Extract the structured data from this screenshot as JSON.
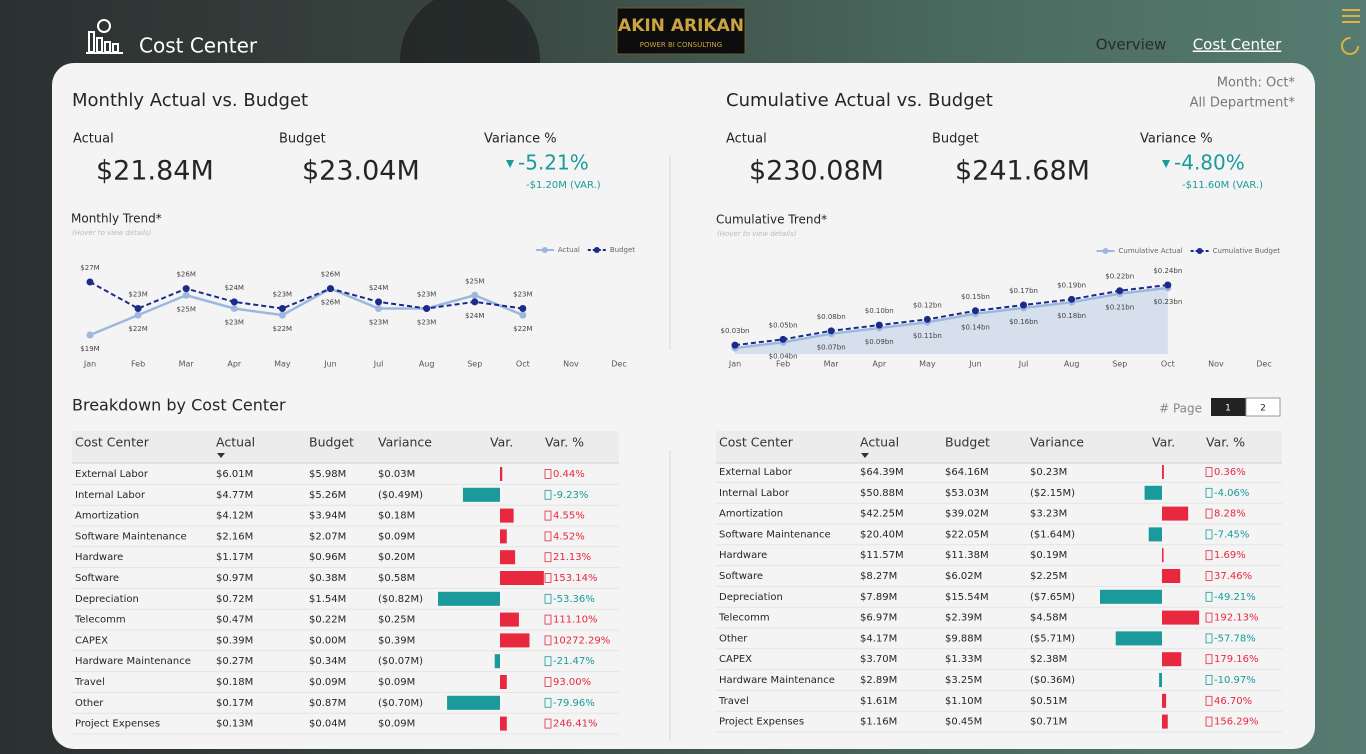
{
  "header": {
    "title": "Cost Center",
    "logo": "AKIN ARIKAN",
    "logo_sub": "POWER BI CONSULTING",
    "nav": [
      "Overview",
      "Cost Center"
    ]
  },
  "filters": [
    "Month: Oct*",
    "All Department*"
  ],
  "panels": [
    {
      "title": "Monthly Actual vs. Budget",
      "kpis": [
        {
          "label": "Actual",
          "value": "$21.84M"
        },
        {
          "label": "Budget",
          "value": "$23.04M"
        },
        {
          "label": "Variance %",
          "value": "-5.21%",
          "sub": "-$1.20M (VAR.)"
        }
      ]
    },
    {
      "title": "Cumulative Actual vs. Budget",
      "kpis": [
        {
          "label": "Actual",
          "value": "$230.08M"
        },
        {
          "label": "Budget",
          "value": "$241.68M"
        },
        {
          "label": "Variance %",
          "value": "-4.80%",
          "sub": "-$11.60M (VAR.)"
        }
      ]
    }
  ],
  "chart_data": [
    {
      "type": "line",
      "title": "Monthly Trend*",
      "subtitle": "(Hover to view details)",
      "legend": "top-right",
      "area": false,
      "categories": [
        "Jan",
        "Feb",
        "Mar",
        "Apr",
        "May",
        "Jun",
        "Jul",
        "Aug",
        "Sep",
        "Oct",
        "Nov",
        "Dec"
      ],
      "series": [
        {
          "name": "Actual",
          "color": "#9db8de",
          "dashed": false,
          "values": [
            19,
            22,
            25,
            23,
            22,
            26,
            23,
            23,
            25,
            22,
            null,
            null
          ],
          "value_labels": [
            "$19M",
            "$22M",
            "$25M",
            "$23M",
            "$22M",
            "$26M",
            "$23M",
            "$23M",
            "$25M",
            "$22M",
            null,
            null
          ]
        },
        {
          "name": "Budget",
          "color": "#1c2a8c",
          "dashed": true,
          "values": [
            27,
            23,
            26,
            24,
            23,
            26,
            24,
            23,
            24,
            23,
            null,
            null
          ],
          "value_labels": [
            "$27M",
            "$23M",
            "$26M",
            "$24M",
            "$23M",
            "$26M",
            "$24M",
            "$23M",
            "$24M",
            "$23M",
            null,
            null
          ]
        }
      ]
    },
    {
      "type": "line",
      "title": "Cumulative Trend*",
      "subtitle": "(Hover to view details)",
      "legend": "top-right",
      "area": true,
      "categories": [
        "Jan",
        "Feb",
        "Mar",
        "Apr",
        "May",
        "Jun",
        "Jul",
        "Aug",
        "Sep",
        "Oct",
        "Nov",
        "Dec"
      ],
      "series": [
        {
          "name": "Cumulative Actual",
          "color": "#9db8de",
          "dashed": false,
          "values": [
            0.02,
            0.04,
            0.07,
            0.09,
            0.11,
            0.14,
            0.16,
            0.18,
            0.21,
            0.23,
            null,
            null
          ],
          "value_labels": [
            null,
            "$0.04bn",
            "$0.07bn",
            "$0.09bn",
            "$0.11bn",
            "$0.14bn",
            "$0.16bn",
            "$0.18bn",
            "$0.21bn",
            "$0.23bn",
            null,
            null
          ]
        },
        {
          "name": "Cumulative Budget",
          "color": "#1c2a8c",
          "dashed": true,
          "values": [
            0.03,
            0.05,
            0.08,
            0.1,
            0.12,
            0.15,
            0.17,
            0.19,
            0.22,
            0.24,
            null,
            null
          ],
          "value_labels": [
            "$0.03bn",
            "$0.05bn",
            "$0.08bn",
            "$0.10bn",
            "$0.12bn",
            "$0.15bn",
            "$0.17bn",
            "$0.19bn",
            "$0.22bn",
            "$0.24bn",
            null,
            null
          ]
        }
      ]
    }
  ],
  "breakdown": {
    "title": "Breakdown by Cost Center",
    "page_label": "# Page",
    "pages": [
      "1",
      "2"
    ]
  },
  "tables": [
    {
      "columns": [
        "Cost Center",
        "Actual",
        "Budget",
        "Variance",
        "Var.",
        "Var. %"
      ],
      "positive_color": "#e8283e",
      "negative_color": "#1a9a9a",
      "cost_centers": [
        "External Labor",
        "Internal Labor",
        "Amortization",
        "Software Maintenance",
        "Hardware",
        "Software",
        "Depreciation",
        "Telecomm",
        "CAPEX",
        "Hardware Maintenance",
        "Travel",
        "Other",
        "Project Expenses"
      ],
      "actual": [
        "$6.01M",
        "$4.77M",
        "$4.12M",
        "$2.16M",
        "$1.17M",
        "$0.97M",
        "$0.72M",
        "$0.47M",
        "$0.39M",
        "$0.27M",
        "$0.18M",
        "$0.17M",
        "$0.13M"
      ],
      "budget": [
        "$5.98M",
        "$5.26M",
        "$3.94M",
        "$2.07M",
        "$0.96M",
        "$0.38M",
        "$1.54M",
        "$0.22M",
        "$0.00M",
        "$0.34M",
        "$0.09M",
        "$0.87M",
        "$0.04M"
      ],
      "variance": {
        "values": [
          0.03,
          -0.49,
          0.18,
          0.09,
          0.2,
          0.58,
          -0.82,
          0.25,
          0.39,
          -0.07,
          0.09,
          -0.7,
          0.09
        ],
        "value_labels": [
          "$0.03M",
          "($0.49M)",
          "$0.18M",
          "$0.09M",
          "$0.20M",
          "$0.58M",
          "($0.82M)",
          "$0.25M",
          "$0.39M",
          "($0.07M)",
          "$0.09M",
          "($0.70M)",
          "$0.09M"
        ]
      },
      "var_pct": [
        "0.44%",
        "-9.23%",
        "4.55%",
        "4.52%",
        "21.13%",
        "153.14%",
        "-53.36%",
        "111.10%",
        "10272.29%",
        "-21.47%",
        "93.00%",
        "-79.96%",
        "246.41%"
      ]
    },
    {
      "columns": [
        "Cost Center",
        "Actual",
        "Budget",
        "Variance",
        "Var.",
        "Var. %"
      ],
      "positive_color": "#e8283e",
      "negative_color": "#1a9a9a",
      "cost_centers": [
        "External Labor",
        "Internal Labor",
        "Amortization",
        "Software Maintenance",
        "Hardware",
        "Software",
        "Depreciation",
        "Telecomm",
        "Other",
        "CAPEX",
        "Hardware Maintenance",
        "Travel",
        "Project Expenses"
      ],
      "actual": [
        "$64.39M",
        "$50.88M",
        "$42.25M",
        "$20.40M",
        "$11.57M",
        "$8.27M",
        "$7.89M",
        "$6.97M",
        "$4.17M",
        "$3.70M",
        "$2.89M",
        "$1.61M",
        "$1.16M"
      ],
      "budget": [
        "$64.16M",
        "$53.03M",
        "$39.02M",
        "$22.05M",
        "$11.38M",
        "$6.02M",
        "$15.54M",
        "$2.39M",
        "$9.88M",
        "$1.33M",
        "$3.25M",
        "$1.10M",
        "$0.45M"
      ],
      "variance": {
        "values": [
          0.23,
          -2.15,
          3.23,
          -1.64,
          0.19,
          2.25,
          -7.65,
          4.58,
          -5.71,
          2.38,
          -0.36,
          0.51,
          0.71
        ],
        "value_labels": [
          "$0.23M",
          "($2.15M)",
          "$3.23M",
          "($1.64M)",
          "$0.19M",
          "$2.25M",
          "($7.65M)",
          "$4.58M",
          "($5.71M)",
          "$2.38M",
          "($0.36M)",
          "$0.51M",
          "$0.71M"
        ]
      },
      "var_pct": [
        "0.36%",
        "-4.06%",
        "8.28%",
        "-7.45%",
        "1.69%",
        "37.46%",
        "-49.21%",
        "192.13%",
        "-57.78%",
        "179.16%",
        "-10.97%",
        "46.70%",
        "156.29%"
      ]
    }
  ]
}
